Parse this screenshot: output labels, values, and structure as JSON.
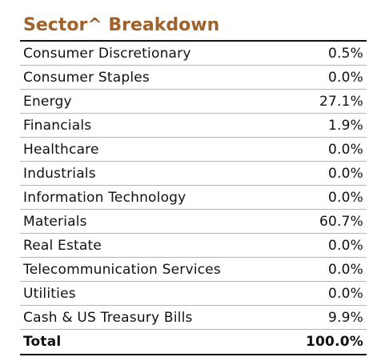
{
  "title": "Sector^ Breakdown",
  "rows": [
    {
      "label": "Consumer Discretionary",
      "value": "0.5%"
    },
    {
      "label": "Consumer Staples",
      "value": "0.0%"
    },
    {
      "label": "Energy",
      "value": "27.1%"
    },
    {
      "label": "Financials",
      "value": "1.9%"
    },
    {
      "label": "Healthcare",
      "value": "0.0%"
    },
    {
      "label": "Industrials",
      "value": "0.0%"
    },
    {
      "label": "Information Technology",
      "value": "0.0%"
    },
    {
      "label": "Materials",
      "value": "60.7%"
    },
    {
      "label": "Real Estate",
      "value": "0.0%"
    },
    {
      "label": "Telecommunication Services",
      "value": "0.0%"
    },
    {
      "label": "Utilities",
      "value": "0.0%"
    },
    {
      "label": "Cash & US Treasury Bills",
      "value": "9.9%"
    }
  ],
  "total": {
    "label": "Total",
    "value": "100.0%"
  },
  "colors": {
    "title": "#a0622a",
    "row_divider": "#e2a77f",
    "rule": "#111111"
  }
}
